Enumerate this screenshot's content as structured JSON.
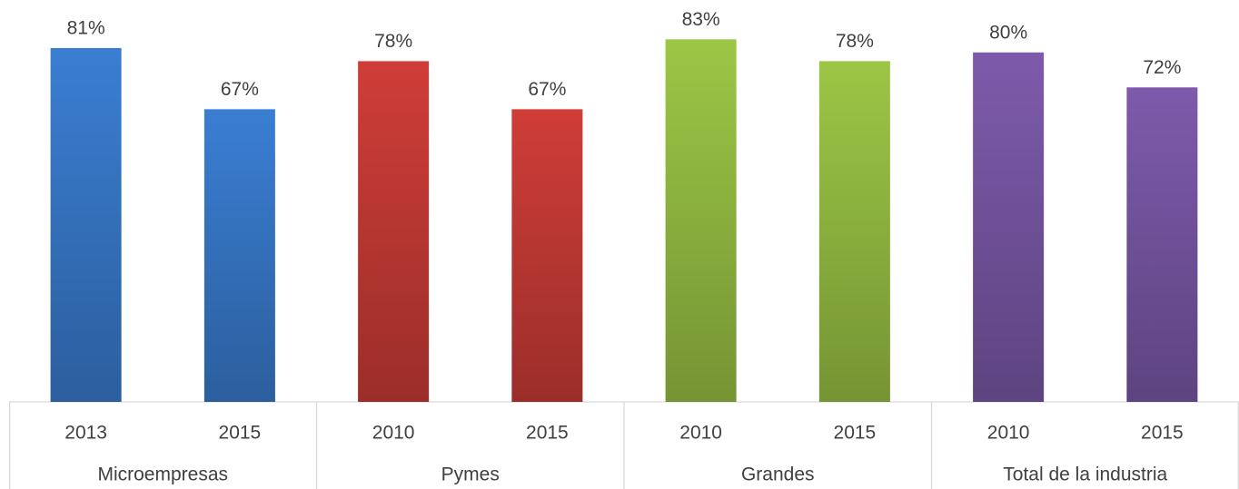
{
  "chart_data": {
    "type": "bar",
    "ylim": [
      0,
      92
    ],
    "groups": [
      {
        "name": "Microempresas",
        "color": "#3a7ed2",
        "categories": [
          "2013",
          "2015"
        ],
        "values": [
          81,
          67
        ],
        "value_labels": [
          "81%",
          "67%"
        ]
      },
      {
        "name": "Pymes",
        "color": "#cf3d38",
        "categories": [
          "2010",
          "2015"
        ],
        "values": [
          78,
          67
        ],
        "value_labels": [
          "78%",
          "67%"
        ]
      },
      {
        "name": "Grandes",
        "color": "#9cc645",
        "categories": [
          "2010",
          "2015"
        ],
        "values": [
          83,
          78
        ],
        "value_labels": [
          "83%",
          "78%"
        ]
      },
      {
        "name": "Total de la industria",
        "color": "#7d5aab",
        "categories": [
          "2010",
          "2015"
        ],
        "values": [
          80,
          72
        ],
        "value_labels": [
          "80%",
          "72%"
        ]
      }
    ]
  }
}
